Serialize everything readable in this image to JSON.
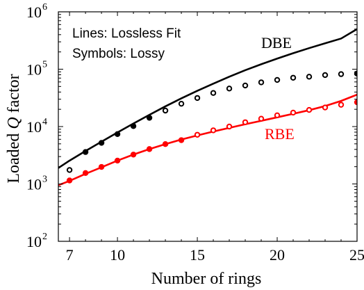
{
  "chart_data": {
    "type": "line",
    "title": "",
    "xlabel": "Number of rings",
    "ylabel": "Loaded Q factor",
    "ylabel_parts": {
      "prefix": "Loaded ",
      "q": "Q",
      "suffix": " factor"
    },
    "xlim": [
      6.3,
      25
    ],
    "ylim": [
      100,
      1000000
    ],
    "yscale": "log",
    "grid": false,
    "legend": "none",
    "xticks": [
      7,
      10,
      15,
      20,
      25
    ],
    "xtick_labels": [
      "7",
      "10",
      "15",
      "20",
      "25"
    ],
    "yticks": [
      100,
      1000,
      10000,
      100000,
      1000000
    ],
    "ytick_labels": [
      {
        "base": "10",
        "exp": "2"
      },
      {
        "base": "10",
        "exp": "3"
      },
      {
        "base": "10",
        "exp": "4"
      },
      {
        "base": "10",
        "exp": "5"
      },
      {
        "base": "10",
        "exp": "6"
      }
    ],
    "annotations": {
      "lines_note": "Lines: Lossless Fit",
      "symbols_note": "Symbols: Lossy",
      "dbe_label": "DBE",
      "rbe_label": "RBE"
    },
    "series": [
      {
        "kind": "line",
        "color": "#000000",
        "x": [
          6.3,
          7,
          8,
          9,
          10,
          11,
          12,
          13,
          14,
          15,
          16,
          17,
          18,
          19,
          20,
          21,
          22,
          23,
          24,
          25
        ],
        "y": [
          1900,
          2550,
          3750,
          5450,
          7900,
          11300,
          16000,
          22500,
          31000,
          42000,
          56000,
          74000,
          96000,
          122000,
          153000,
          190000,
          233000,
          283000,
          342000,
          500000
        ]
      },
      {
        "kind": "markers",
        "color": "#000000",
        "x": [
          7,
          8,
          9,
          10,
          11,
          12,
          13,
          14,
          15,
          16,
          17,
          18,
          19,
          20,
          21,
          22,
          23,
          24,
          25
        ],
        "y": [
          1750,
          3600,
          5200,
          7400,
          10200,
          14200,
          19000,
          25000,
          31500,
          38500,
          46000,
          52000,
          59000,
          65000,
          71000,
          74000,
          79000,
          82000,
          84000
        ],
        "filled": [
          false,
          true,
          true,
          true,
          true,
          true,
          false,
          false,
          false,
          false,
          false,
          false,
          false,
          false,
          false,
          false,
          false,
          false,
          true
        ]
      },
      {
        "kind": "line",
        "color": "#ff0000",
        "x": [
          6.3,
          7,
          8,
          9,
          10,
          11,
          12,
          13,
          14,
          15,
          16,
          17,
          18,
          19,
          20,
          21,
          22,
          23,
          24,
          25
        ],
        "y": [
          950,
          1130,
          1500,
          1950,
          2550,
          3250,
          4050,
          4950,
          5950,
          7000,
          8200,
          9500,
          11000,
          12600,
          14500,
          16700,
          19300,
          22800,
          28000,
          36000
        ]
      },
      {
        "kind": "markers",
        "color": "#ff0000",
        "x": [
          7,
          8,
          9,
          10,
          11,
          12,
          13,
          14,
          15,
          16,
          17,
          18,
          19,
          20,
          21,
          22,
          23,
          24,
          25
        ],
        "y": [
          1150,
          1550,
          1980,
          2550,
          3250,
          4050,
          4950,
          5800,
          7200,
          8600,
          10000,
          11900,
          13700,
          15700,
          17500,
          19500,
          21500,
          24000,
          26500
        ],
        "filled": [
          true,
          true,
          true,
          true,
          true,
          true,
          true,
          true,
          false,
          false,
          false,
          false,
          false,
          false,
          false,
          false,
          false,
          false,
          true
        ]
      }
    ]
  }
}
